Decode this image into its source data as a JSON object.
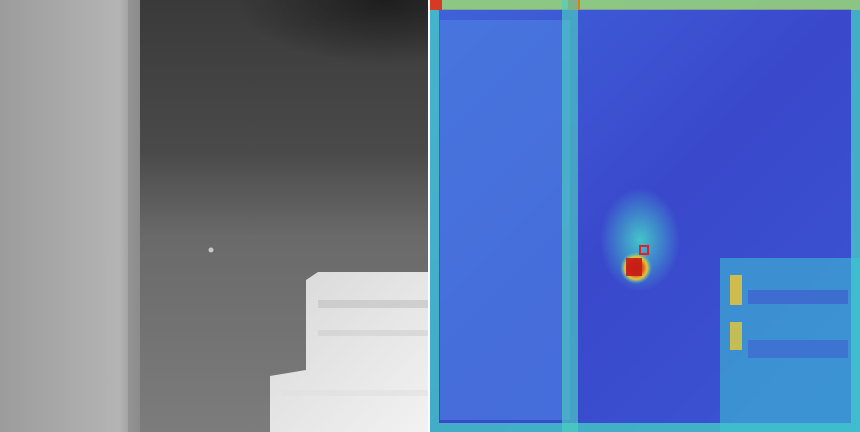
{
  "panels": [
    {
      "name": "infrared-grayscale-image"
    },
    {
      "name": "heatmap-overlay-image"
    }
  ],
  "colors": {
    "low": "#3f4fd8",
    "mid": "#3fc9d6",
    "high": "#d62e1c",
    "marker": "#e0202a"
  }
}
